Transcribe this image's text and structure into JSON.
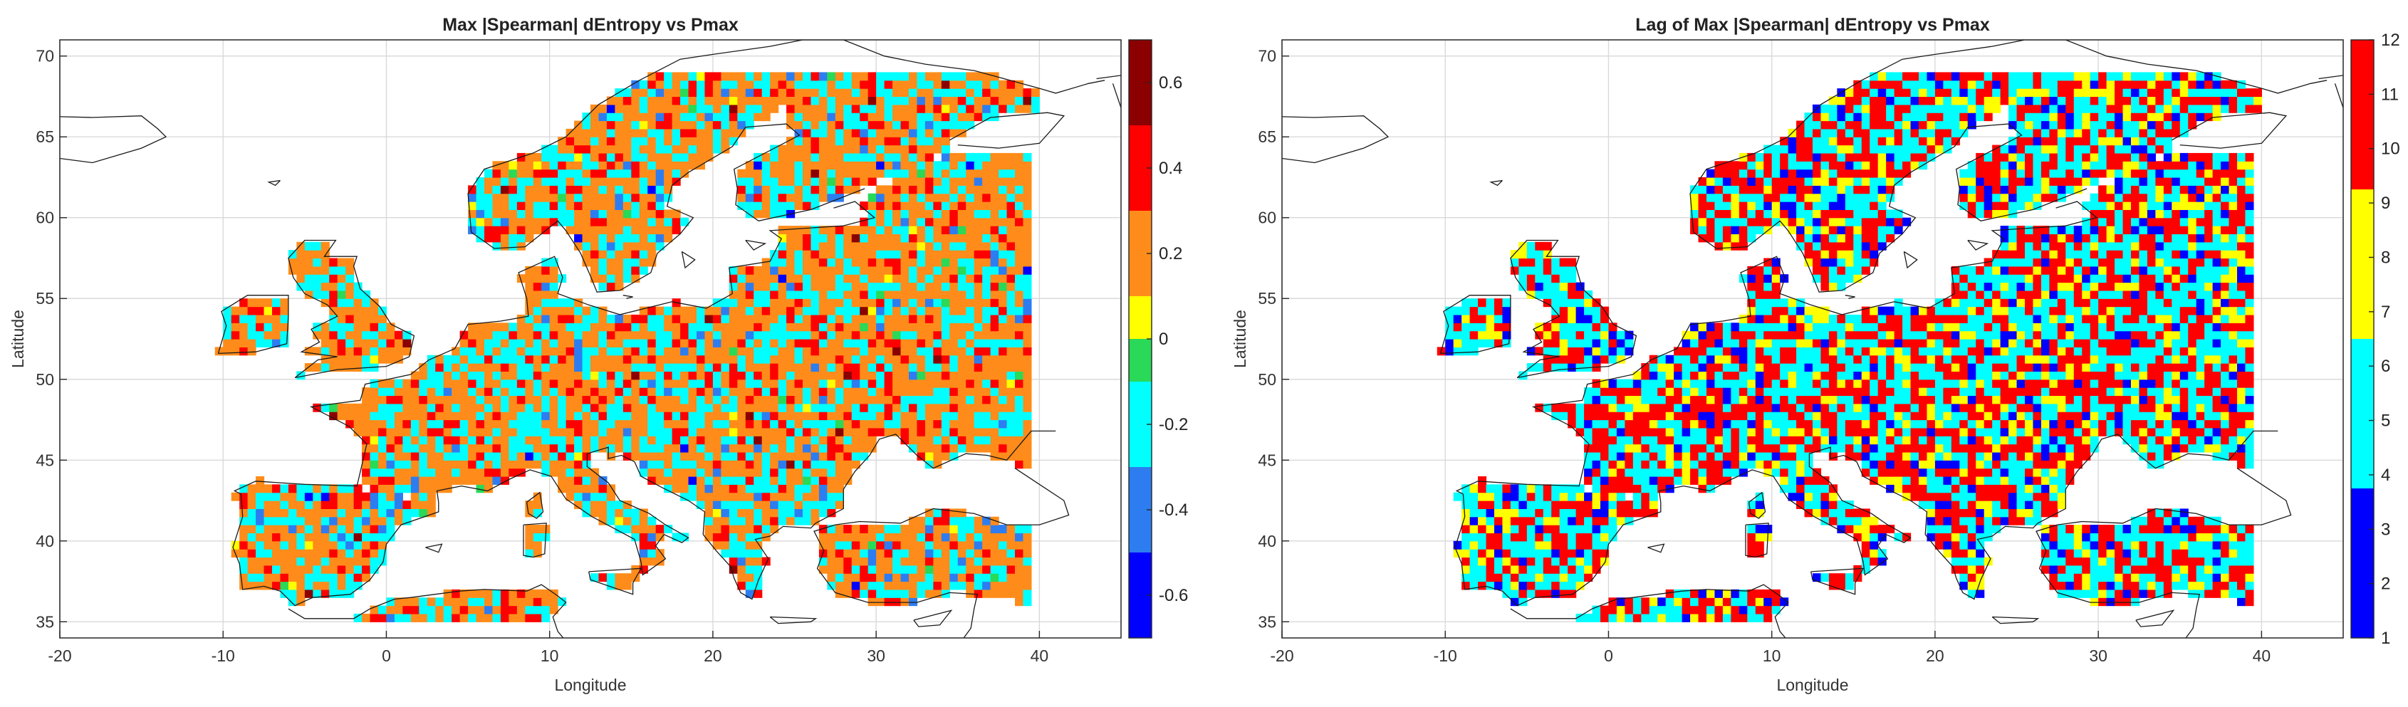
{
  "chart_data": [
    {
      "type": "heatmap",
      "title": "Max |Spearman| dEntropy vs Pmax",
      "xlabel": "Longitude",
      "ylabel": "Latitude",
      "xlim": [
        -20,
        45
      ],
      "ylim": [
        34,
        71
      ],
      "xticks": [
        -20,
        -10,
        0,
        10,
        20,
        30,
        40
      ],
      "yticks": [
        35,
        40,
        45,
        50,
        55,
        60,
        65,
        70
      ],
      "grid": true,
      "grid_cell_degrees": 0.5,
      "colorbar": {
        "range": [
          -0.7,
          0.7
        ],
        "ticks": [
          "-0.6",
          "-0.4",
          "-0.2",
          "0",
          "0.2",
          "0.4",
          "0.6"
        ],
        "tick_values": [
          -0.6,
          -0.4,
          -0.2,
          0,
          0.2,
          0.4,
          0.6
        ],
        "bands": [
          {
            "from": -0.7,
            "to": -0.5,
            "color": "#0000ff"
          },
          {
            "from": -0.5,
            "to": -0.3,
            "color": "#2d7df0"
          },
          {
            "from": -0.3,
            "to": -0.1,
            "color": "#00ffff"
          },
          {
            "from": -0.1,
            "to": 0.0,
            "color": "#29d957"
          },
          {
            "from": 0.0,
            "to": 0.1,
            "color": "#ffff00"
          },
          {
            "from": 0.1,
            "to": 0.3,
            "color": "#ff8c1a"
          },
          {
            "from": 0.3,
            "to": 0.5,
            "color": "#ff0000"
          },
          {
            "from": 0.5,
            "to": 0.7,
            "color": "#8b0000"
          }
        ]
      },
      "category_weights": [
        0.5,
        4,
        30,
        0.8,
        0.8,
        52,
        12,
        0.5
      ]
    },
    {
      "type": "heatmap",
      "title": "Lag of Max |Spearman| dEntropy vs Pmax",
      "xlabel": "Longitude",
      "ylabel": "Latitude",
      "xlim": [
        -20,
        45
      ],
      "ylim": [
        34,
        71
      ],
      "xticks": [
        -20,
        -10,
        0,
        10,
        20,
        30,
        40
      ],
      "yticks": [
        35,
        40,
        45,
        50,
        55,
        60,
        65,
        70
      ],
      "grid": true,
      "grid_cell_degrees": 0.5,
      "colorbar": {
        "range": [
          1,
          12
        ],
        "ticks": [
          "1",
          "2",
          "3",
          "4",
          "5",
          "6",
          "7",
          "8",
          "9",
          "10",
          "11",
          "12"
        ],
        "tick_values": [
          1,
          2,
          3,
          4,
          5,
          6,
          7,
          8,
          9,
          10,
          11,
          12
        ],
        "bands": [
          {
            "from": 1,
            "to": 3.75,
            "color": "#0000ff"
          },
          {
            "from": 3.75,
            "to": 6.5,
            "color": "#00ffff"
          },
          {
            "from": 6.5,
            "to": 9.25,
            "color": "#ffff00"
          },
          {
            "from": 9.25,
            "to": 12,
            "color": "#ff0000"
          }
        ]
      },
      "category_weights": [
        10,
        38,
        14,
        38
      ]
    }
  ]
}
